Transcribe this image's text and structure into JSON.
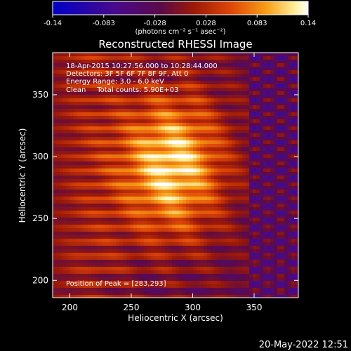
{
  "chart_data": {
    "type": "heatmap",
    "title": "Reconstructed RHESSI Image",
    "colorbar": {
      "ticks": [
        "-0.14",
        "-0.083",
        "-0.028",
        "0.028",
        "0.083",
        "0.14"
      ],
      "range": [
        -0.14,
        0.14
      ],
      "unit_label": "(photons cm⁻² s⁻¹ asec⁻²)",
      "colormap": [
        "#0000c8",
        "#4a0a8a",
        "#5a0a4a",
        "#9a1808",
        "#e04808",
        "#f8a018",
        "#fff0a0",
        "#ffffff"
      ]
    },
    "xlabel": "Heliocentric X (arcsec)",
    "ylabel": "Heliocentric Y (arcsec)",
    "xlim": [
      186,
      386
    ],
    "ylim": [
      186,
      384
    ],
    "xticks": [
      200,
      250,
      300,
      350
    ],
    "yticks": [
      200,
      250,
      300,
      350
    ],
    "info_lines": [
      "18-Apr-2015 10:27:56.000 to 10:28:44.000",
      "Detectors: 3F 5F 6F 7F 8F 9F, Att 0",
      "Energy Range: 3.0 - 6.0 keV",
      "Clean     Total counts: 5.90E+03"
    ],
    "peak_label": "Position of Peak = [283,293]",
    "peak": [
      283,
      293
    ],
    "timestamp": "20-May-2022 12:51"
  }
}
